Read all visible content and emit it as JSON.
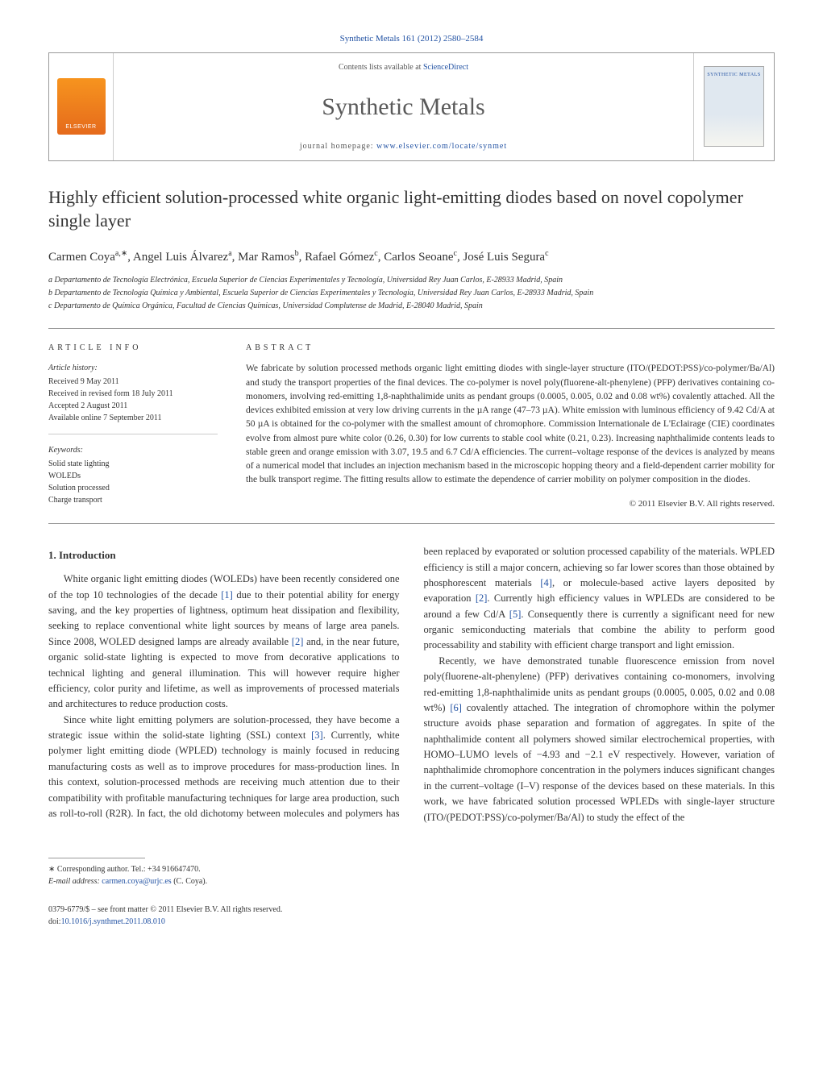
{
  "header": {
    "citation_line": "Synthetic Metals 161 (2012) 2580–2584",
    "contents_prefix": "Contents lists available at ",
    "contents_link": "ScienceDirect",
    "journal_name": "Synthetic Metals",
    "homepage_prefix": "journal homepage: ",
    "homepage_url": "www.elsevier.com/locate/synmet",
    "publisher_logo_text": "ELSEVIER",
    "cover_label": "SYNTHETIC METALS"
  },
  "article": {
    "title": "Highly efficient solution-processed white organic light-emitting diodes based on novel copolymer single layer",
    "authors_html": "Carmen Coya<sup>a,∗</sup>, Angel Luis Álvarez<sup>a</sup>, Mar Ramos<sup>b</sup>, Rafael Gómez<sup>c</sup>, Carlos Seoane<sup>c</sup>, José Luis Segura<sup>c</sup>",
    "affiliations": {
      "a": "a Departamento de Tecnología Electrónica, Escuela Superior de Ciencias Experimentales y Tecnología, Universidad Rey Juan Carlos, E-28933 Madrid, Spain",
      "b": "b Departamento de Tecnología Química y Ambiental, Escuela Superior de Ciencias Experimentales y Tecnología, Universidad Rey Juan Carlos, E-28933 Madrid, Spain",
      "c": "c Departamento de Química Orgánica, Facultad de Ciencias Químicas, Universidad Complutense de Madrid, E-28040 Madrid, Spain"
    }
  },
  "info": {
    "section_label": "article info",
    "history_label": "Article history:",
    "history": {
      "received": "Received 9 May 2011",
      "revised": "Received in revised form 18 July 2011",
      "accepted": "Accepted 2 August 2011",
      "online": "Available online 7 September 2011"
    },
    "keywords_label": "Keywords:",
    "keywords": [
      "Solid state lighting",
      "WOLEDs",
      "Solution processed",
      "Charge transport"
    ]
  },
  "abstract": {
    "section_label": "abstract",
    "text": "We fabricate by solution processed methods organic light emitting diodes with single-layer structure (ITO/(PEDOT:PSS)/co-polymer/Ba/Al) and study the transport properties of the final devices. The co-polymer is novel poly(fluorene-alt-phenylene) (PFP) derivatives containing co-monomers, involving red-emitting 1,8-naphthalimide units as pendant groups (0.0005, 0.005, 0.02 and 0.08 wt%) covalently attached. All the devices exhibited emission at very low driving currents in the µA range (47–73 µA). White emission with luminous efficiency of 9.42 Cd/A at 50 µA is obtained for the co-polymer with the smallest amount of chromophore. Commission Internationale de L'Eclairage (CIE) coordinates evolve from almost pure white color (0.26, 0.30) for low currents to stable cool white (0.21, 0.23). Increasing naphthalimide contents leads to stable green and orange emission with 3.07, 19.5 and 6.7 Cd/A efficiencies. The current–voltage response of the devices is analyzed by means of a numerical model that includes an injection mechanism based in the microscopic hopping theory and a field-dependent carrier mobility for the bulk transport regime. The fitting results allow to estimate the dependence of carrier mobility on polymer composition in the diodes.",
    "copyright": "© 2011 Elsevier B.V. All rights reserved."
  },
  "body": {
    "section1_heading": "1. Introduction",
    "p1": "White organic light emitting diodes (WOLEDs) have been recently considered one of the top 10 technologies of the decade [1] due to their potential ability for energy saving, and the key properties of lightness, optimum heat dissipation and flexibility, seeking to replace conventional white light sources by means of large area panels. Since 2008, WOLED designed lamps are already available [2] and, in the near future, organic solid-state lighting is expected to move from decorative applications to technical lighting and general illumination. This will however require higher efficiency, color purity and lifetime, as well as improvements of processed materials and architectures to reduce production costs.",
    "p2": "Since white light emitting polymers are solution-processed, they have become a strategic issue within the solid-state lighting (SSL) context [3]. Currently, white polymer light emitting diode (WPLED) technology is mainly focused in reducing manufacturing costs as well as to improve procedures for mass-production lines. In this context, solution-processed methods are receiving much attention due to their compatibility with profitable manufacturing techniques for large area production, such as roll-to-roll (R2R). In fact, the old dichotomy between molecules and polymers has been replaced by evaporated or solution processed capability of the materials. WPLED efficiency is still a major concern, achieving so far lower scores than those obtained by phosphorescent materials [4], or molecule-based active layers deposited by evaporation [2]. Currently high efficiency values in WPLEDs are considered to be around a few Cd/A [5]. Consequently there is currently a significant need for new organic semiconducting materials that combine the ability to perform good processability and stability with efficient charge transport and light emission.",
    "p3": "Recently, we have demonstrated tunable fluorescence emission from novel poly(fluorene-alt-phenylene) (PFP) derivatives containing co-monomers, involving red-emitting 1,8-naphthalimide units as pendant groups (0.0005, 0.005, 0.02 and 0.08 wt%) [6] covalently attached. The integration of chromophore within the polymer structure avoids phase separation and formation of aggregates. In spite of the naphthalimide content all polymers showed similar electrochemical properties, with HOMO–LUMO levels of −4.93 and −2.1 eV respectively. However, variation of naphthalimide chromophore concentration in the polymers induces significant changes in the current–voltage (I–V) response of the devices based on these materials. In this work, we have fabricated solution processed WPLEDs with single-layer structure (ITO/(PEDOT:PSS)/co-polymer/Ba/Al) to study the effect of the"
  },
  "footnote": {
    "corr": "∗ Corresponding author. Tel.: +34 916647470.",
    "email_label": "E-mail address: ",
    "email": "carmen.coya@urjc.es",
    "email_suffix": " (C. Coya)."
  },
  "footer": {
    "line1": "0379-6779/$ – see front matter © 2011 Elsevier B.V. All rights reserved.",
    "doi_prefix": "doi:",
    "doi": "10.1016/j.synthmet.2011.08.010"
  },
  "colors": {
    "link": "#2252a3",
    "text": "#333333",
    "rule": "#999999"
  }
}
